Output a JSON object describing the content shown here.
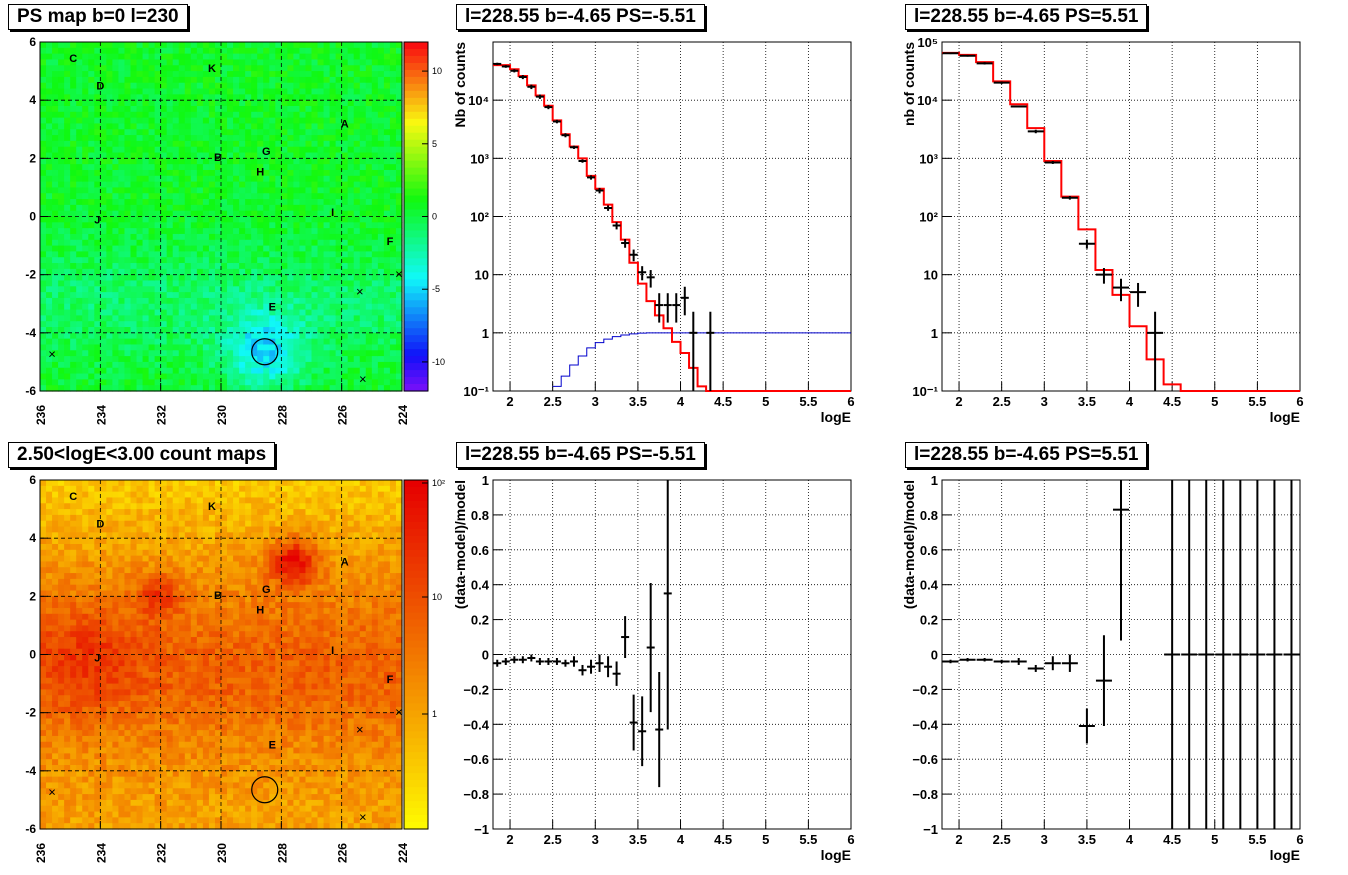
{
  "titles": {
    "ps_map": "PS map b=0 l=230",
    "spec_neg": "l=228.55 b=-4.65 PS=-5.51",
    "spec_pos": "l=228.55 b=-4.65 PS=5.51",
    "count_map": "2.50<logE<3.00 count maps",
    "res_neg": "l=228.55 b=-4.65 PS=-5.51",
    "res_pos": "l=228.55 b=-4.65 PS=5.51"
  },
  "colors": {
    "model": "#ff0000",
    "exposure": "#0000cc",
    "data": "#000000",
    "grid": "#000000"
  },
  "chart_data": [
    {
      "type": "heatmap",
      "id": "ps_map",
      "title": "PS map b=0 l=230",
      "x_ticks": [
        "236",
        "234",
        "232",
        "230",
        "228",
        "226",
        "224"
      ],
      "y_ticks": [
        "-6",
        "-4",
        "-2",
        "0",
        "2",
        "4",
        "6"
      ],
      "xlim": [
        236,
        224
      ],
      "ylim": [
        -6,
        6
      ],
      "colorbar_ticks": [
        "10",
        "5",
        "0",
        "-5",
        "-10"
      ],
      "zlim": [
        -12,
        12
      ],
      "sources": [
        {
          "label": "C",
          "l": 234.9,
          "b": 5.45
        },
        {
          "label": "D",
          "l": 234.0,
          "b": 4.5
        },
        {
          "label": "K",
          "l": 230.3,
          "b": 5.1
        },
        {
          "label": "A",
          "l": 225.9,
          "b": 3.2
        },
        {
          "label": "B",
          "l": 230.1,
          "b": 2.05
        },
        {
          "label": "G",
          "l": 228.5,
          "b": 2.25
        },
        {
          "label": "H",
          "l": 228.7,
          "b": 1.55
        },
        {
          "label": "J",
          "l": 234.1,
          "b": -0.1
        },
        {
          "label": "I",
          "l": 226.3,
          "b": 0.15
        },
        {
          "label": "F",
          "l": 224.4,
          "b": -0.85
        },
        {
          "label": "E",
          "l": 228.3,
          "b": -3.1
        }
      ],
      "crosses": [
        [
          235.6,
          -4.75
        ],
        [
          225.4,
          -2.6
        ],
        [
          225.3,
          -5.6
        ],
        [
          224.1,
          -2.0
        ]
      ],
      "circle": {
        "l": 228.55,
        "b": -4.65
      }
    },
    {
      "type": "line",
      "id": "spec_neg",
      "title": "l=228.55 b=-4.65 PS=-5.51",
      "xlabel": "logE",
      "ylabel": "Nb of counts",
      "xlim": [
        1.8,
        6
      ],
      "ylim": [
        0.1,
        100000
      ],
      "log_y": true,
      "x_ticks": [
        "2",
        "2.5",
        "3",
        "3.5",
        "4",
        "4.5",
        "5",
        "5.5",
        "6"
      ],
      "y_ticks": [
        "10<sup>-1</sup>",
        "1",
        "10",
        "10<sup>2</sup>",
        "10<sup>3</sup>",
        "10<sup>4</sup>"
      ],
      "y_tick_labels": [
        "10⁻¹",
        "1",
        "10",
        "10²",
        "10³",
        "10⁴"
      ],
      "model_edges": [
        1.8,
        1.9,
        2.0,
        2.1,
        2.2,
        2.3,
        2.4,
        2.5,
        2.6,
        2.7,
        2.8,
        2.9,
        3.0,
        3.1,
        3.2,
        3.3,
        3.4,
        3.5,
        3.6,
        3.7,
        3.8,
        3.9,
        4.0,
        4.1,
        4.2,
        4.3,
        4.4,
        6.0
      ],
      "model_values": [
        40000,
        40000,
        34000,
        26000,
        18000,
        12000,
        8000,
        4500,
        2600,
        1600,
        1000,
        500,
        300,
        160,
        80,
        40,
        16,
        7,
        3.5,
        2.0,
        1.2,
        0.7,
        0.45,
        0.25,
        0.12,
        0.1,
        0.1
      ],
      "exposure_edges": [
        2.5,
        2.6,
        2.7,
        2.8,
        2.9,
        3.0,
        3.1,
        3.2,
        3.3,
        3.4,
        3.5,
        3.6,
        3.7,
        3.8,
        3.9,
        4.0,
        4.1,
        6.0
      ],
      "exposure_values": [
        0.12,
        0.18,
        0.28,
        0.4,
        0.55,
        0.68,
        0.78,
        0.86,
        0.92,
        0.96,
        0.99,
        1.0,
        1.0,
        1.0,
        1.0,
        1.0,
        1.0
      ],
      "points": [
        {
          "x": 1.85,
          "y": 42000,
          "lo": 40000,
          "hi": 44000
        },
        {
          "x": 1.95,
          "y": 38000,
          "lo": 36000,
          "hi": 40000
        },
        {
          "x": 2.05,
          "y": 32000,
          "lo": 30000,
          "hi": 34000
        },
        {
          "x": 2.15,
          "y": 25000,
          "lo": 23000,
          "hi": 27000
        },
        {
          "x": 2.25,
          "y": 17000,
          "lo": 15500,
          "hi": 18500
        },
        {
          "x": 2.35,
          "y": 11500,
          "lo": 10500,
          "hi": 12500
        },
        {
          "x": 2.45,
          "y": 7600,
          "lo": 7000,
          "hi": 8200
        },
        {
          "x": 2.55,
          "y": 4300,
          "lo": 4000,
          "hi": 4600
        },
        {
          "x": 2.65,
          "y": 2500,
          "lo": 2300,
          "hi": 2700
        },
        {
          "x": 2.75,
          "y": 1550,
          "lo": 1450,
          "hi": 1650
        },
        {
          "x": 2.85,
          "y": 900,
          "lo": 840,
          "hi": 960
        },
        {
          "x": 2.95,
          "y": 470,
          "lo": 430,
          "hi": 510
        },
        {
          "x": 3.05,
          "y": 280,
          "lo": 250,
          "hi": 310
        },
        {
          "x": 3.15,
          "y": 140,
          "lo": 125,
          "hi": 155
        },
        {
          "x": 3.25,
          "y": 70,
          "lo": 60,
          "hi": 80
        },
        {
          "x": 3.35,
          "y": 35,
          "lo": 29,
          "hi": 41
        },
        {
          "x": 3.45,
          "y": 22,
          "lo": 17,
          "hi": 27
        },
        {
          "x": 3.55,
          "y": 11,
          "lo": 8,
          "hi": 14
        },
        {
          "x": 3.65,
          "y": 9,
          "lo": 6,
          "hi": 12
        },
        {
          "x": 3.75,
          "y": 3,
          "lo": 1.5,
          "hi": 4.8
        },
        {
          "x": 3.85,
          "y": 3,
          "lo": 1.5,
          "hi": 4.8
        },
        {
          "x": 3.95,
          "y": 3,
          "lo": 1.5,
          "hi": 4.8
        },
        {
          "x": 4.05,
          "y": 4,
          "lo": 2,
          "hi": 6.2
        },
        {
          "x": 4.15,
          "y": 1,
          "lo": 0.1,
          "hi": 2.3
        },
        {
          "x": 4.35,
          "y": 1,
          "lo": 0.1,
          "hi": 2.3
        }
      ]
    },
    {
      "type": "line",
      "id": "spec_pos",
      "title": "l=228.55 b=-4.65 PS=5.51",
      "xlabel": "logE",
      "ylabel": "nb of counts",
      "xlim": [
        1.8,
        6
      ],
      "ylim": [
        0.1,
        100000
      ],
      "log_y": true,
      "x_ticks": [
        "2",
        "2.5",
        "3",
        "3.5",
        "4",
        "4.5",
        "5",
        "5.5",
        "6"
      ],
      "y_tick_labels": [
        "10⁻¹",
        "1",
        "10",
        "10²",
        "10³",
        "10⁴",
        "10⁵"
      ],
      "model_edges": [
        1.8,
        2.0,
        2.2,
        2.4,
        2.6,
        2.8,
        3.0,
        3.2,
        3.4,
        3.6,
        3.8,
        4.0,
        4.2,
        4.4,
        4.6,
        6.0
      ],
      "model_values": [
        65000,
        60000,
        45000,
        21000,
        8500,
        3300,
        900,
        220,
        60,
        12,
        4.5,
        1.3,
        0.35,
        0.13,
        0.1
      ],
      "points": [
        {
          "x": 1.9,
          "y": 64000,
          "lo": 62000,
          "hi": 66000
        },
        {
          "x": 2.1,
          "y": 58000,
          "lo": 56000,
          "hi": 60000
        },
        {
          "x": 2.3,
          "y": 43000,
          "lo": 41000,
          "hi": 45000
        },
        {
          "x": 2.5,
          "y": 20000,
          "lo": 19000,
          "hi": 21000
        },
        {
          "x": 2.7,
          "y": 7800,
          "lo": 7500,
          "hi": 8100
        },
        {
          "x": 2.9,
          "y": 2900,
          "lo": 2700,
          "hi": 3100
        },
        {
          "x": 3.1,
          "y": 850,
          "lo": 800,
          "hi": 900
        },
        {
          "x": 3.3,
          "y": 210,
          "lo": 195,
          "hi": 225
        },
        {
          "x": 3.5,
          "y": 34,
          "lo": 28,
          "hi": 40
        },
        {
          "x": 3.7,
          "y": 10,
          "lo": 7,
          "hi": 13
        },
        {
          "x": 3.9,
          "y": 6,
          "lo": 3.5,
          "hi": 8.5
        },
        {
          "x": 4.1,
          "y": 5,
          "lo": 2.8,
          "hi": 7.2
        },
        {
          "x": 4.3,
          "y": 1,
          "lo": 0.1,
          "hi": 2.3
        }
      ]
    },
    {
      "type": "heatmap",
      "id": "count_map",
      "title": "2.50<logE<3.00 count maps",
      "x_ticks": [
        "236",
        "234",
        "232",
        "230",
        "228",
        "226",
        "224"
      ],
      "y_ticks": [
        "-6",
        "-4",
        "-2",
        "0",
        "2",
        "4",
        "6"
      ],
      "xlim": [
        236,
        224
      ],
      "ylim": [
        -6,
        6
      ],
      "colorbar_tick_labels": [
        "10²",
        "10",
        "1"
      ],
      "log_z": true,
      "sources": [
        {
          "label": "C",
          "l": 234.9,
          "b": 5.45
        },
        {
          "label": "D",
          "l": 234.0,
          "b": 4.5
        },
        {
          "label": "K",
          "l": 230.3,
          "b": 5.1
        },
        {
          "label": "A",
          "l": 225.9,
          "b": 3.2
        },
        {
          "label": "B",
          "l": 230.1,
          "b": 2.05
        },
        {
          "label": "G",
          "l": 228.5,
          "b": 2.25
        },
        {
          "label": "H",
          "l": 228.7,
          "b": 1.55
        },
        {
          "label": "J",
          "l": 234.1,
          "b": -0.1
        },
        {
          "label": "I",
          "l": 226.3,
          "b": 0.15
        },
        {
          "label": "F",
          "l": 224.4,
          "b": -0.85
        },
        {
          "label": "E",
          "l": 228.3,
          "b": -3.1
        }
      ],
      "crosses": [
        [
          235.6,
          -4.75
        ],
        [
          225.4,
          -2.6
        ],
        [
          225.3,
          -5.6
        ],
        [
          224.1,
          -2.0
        ]
      ],
      "circle": {
        "l": 228.55,
        "b": -4.65
      }
    },
    {
      "type": "scatter",
      "id": "res_neg",
      "title": "l=228.55 b=-4.65 PS=-5.51",
      "xlabel": "logE",
      "ylabel": "(data-model)/model",
      "xlim": [
        1.8,
        6
      ],
      "ylim": [
        -1,
        1
      ],
      "x_ticks": [
        "2",
        "2.5",
        "3",
        "3.5",
        "4",
        "4.5",
        "5",
        "5.5",
        "6"
      ],
      "y_ticks": [
        "-1",
        "-0.8",
        "-0.6",
        "-0.4",
        "-0.2",
        "0",
        "0.2",
        "0.4",
        "0.6",
        "0.8",
        "1"
      ],
      "y_tick_labels": [
        "−1",
        "−0.8",
        "−0.6",
        "−0.4",
        "−0.2",
        "0",
        "0.2",
        "0.4",
        "0.6",
        "0.8",
        "1"
      ],
      "points": [
        {
          "x": 1.85,
          "y": -0.05,
          "err": 0.02
        },
        {
          "x": 1.95,
          "y": -0.04,
          "err": 0.02
        },
        {
          "x": 2.05,
          "y": -0.03,
          "err": 0.02
        },
        {
          "x": 2.15,
          "y": -0.03,
          "err": 0.02
        },
        {
          "x": 2.25,
          "y": -0.02,
          "err": 0.02
        },
        {
          "x": 2.35,
          "y": -0.04,
          "err": 0.02
        },
        {
          "x": 2.45,
          "y": -0.04,
          "err": 0.02
        },
        {
          "x": 2.55,
          "y": -0.04,
          "err": 0.02
        },
        {
          "x": 2.65,
          "y": -0.05,
          "err": 0.02
        },
        {
          "x": 2.75,
          "y": -0.04,
          "err": 0.03
        },
        {
          "x": 2.85,
          "y": -0.09,
          "err": 0.03
        },
        {
          "x": 2.95,
          "y": -0.07,
          "err": 0.04
        },
        {
          "x": 3.05,
          "y": -0.05,
          "err": 0.05
        },
        {
          "x": 3.15,
          "y": -0.07,
          "err": 0.06
        },
        {
          "x": 3.25,
          "y": -0.11,
          "err": 0.07
        },
        {
          "x": 3.35,
          "y": 0.1,
          "err": 0.12
        },
        {
          "x": 3.45,
          "y": -0.39,
          "err": 0.16
        },
        {
          "x": 3.55,
          "y": -0.44,
          "err": 0.2
        },
        {
          "x": 3.65,
          "y": 0.04,
          "err": 0.37
        },
        {
          "x": 3.75,
          "y": -0.43,
          "err": 0.33
        },
        {
          "x": 3.85,
          "y": 0.35,
          "err": 0.78
        }
      ]
    },
    {
      "type": "scatter",
      "id": "res_pos",
      "title": "l=228.55 b=-4.65 PS=5.51",
      "xlabel": "logE",
      "ylabel": "(data-model)/model",
      "xlim": [
        1.8,
        6
      ],
      "ylim": [
        -1,
        1
      ],
      "x_ticks": [
        "2",
        "2.5",
        "3",
        "3.5",
        "4",
        "4.5",
        "5",
        "5.5",
        "6"
      ],
      "y_tick_labels": [
        "−1",
        "−0.8",
        "−0.6",
        "−0.4",
        "−0.2",
        "0",
        "0.2",
        "0.4",
        "0.6",
        "0.8",
        "1"
      ],
      "points": [
        {
          "x": 1.9,
          "y": -0.04,
          "err": 0.01
        },
        {
          "x": 2.1,
          "y": -0.03,
          "err": 0.01
        },
        {
          "x": 2.3,
          "y": -0.03,
          "err": 0.01
        },
        {
          "x": 2.5,
          "y": -0.04,
          "err": 0.01
        },
        {
          "x": 2.7,
          "y": -0.04,
          "err": 0.02
        },
        {
          "x": 2.9,
          "y": -0.08,
          "err": 0.02
        },
        {
          "x": 3.1,
          "y": -0.05,
          "err": 0.04
        },
        {
          "x": 3.3,
          "y": -0.05,
          "err": 0.05
        },
        {
          "x": 3.5,
          "y": -0.41,
          "err": 0.1
        },
        {
          "x": 3.7,
          "y": -0.15,
          "err": 0.26
        },
        {
          "x": 3.9,
          "y": 0.83,
          "err": 0.75
        },
        {
          "x": 4.5,
          "y": 0,
          "err": 2
        },
        {
          "x": 4.7,
          "y": 0,
          "err": 2
        },
        {
          "x": 4.9,
          "y": 0,
          "err": 2
        },
        {
          "x": 5.1,
          "y": 0,
          "err": 2
        },
        {
          "x": 5.3,
          "y": 0,
          "err": 2
        },
        {
          "x": 5.5,
          "y": 0,
          "err": 2
        },
        {
          "x": 5.7,
          "y": 0,
          "err": 2
        },
        {
          "x": 5.9,
          "y": 0,
          "err": 2
        }
      ]
    }
  ]
}
